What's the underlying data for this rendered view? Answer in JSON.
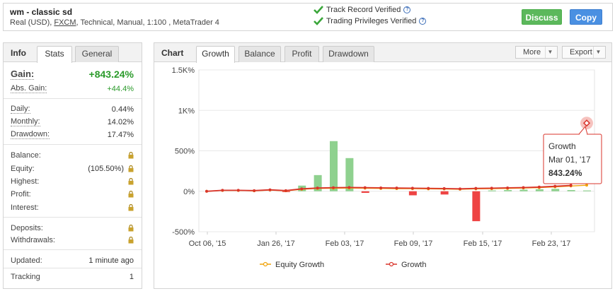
{
  "system": {
    "name": "wm - classic sd",
    "account_type": "Real (USD),",
    "broker": "FXCM",
    "details": ", Technical, Manual, 1:100 , MetaTrader 4"
  },
  "verification": {
    "track_record": "Track Record Verified",
    "trading_privileges": "Trading Privileges Verified",
    "help": "?"
  },
  "actions": {
    "discuss": "Discuss",
    "copy": "Copy"
  },
  "info_panel": {
    "label": "Info",
    "tabs": [
      "Stats",
      "General"
    ],
    "gain": {
      "label": "Gain:",
      "value": "+843.24%"
    },
    "abs_gain": {
      "label": "Abs. Gain:",
      "value": "+44.4%"
    },
    "daily": {
      "label": "Daily:",
      "value": "0.44%"
    },
    "monthly": {
      "label": "Monthly:",
      "value": "14.02%"
    },
    "drawdown": {
      "label": "Drawdown:",
      "value": "17.47%"
    },
    "balance": {
      "label": "Balance:"
    },
    "equity": {
      "label": "Equity:",
      "value": "(105.50%)"
    },
    "highest": {
      "label": "Highest:"
    },
    "profit": {
      "label": "Profit:"
    },
    "interest": {
      "label": "Interest:"
    },
    "deposits": {
      "label": "Deposits:"
    },
    "withdrawals": {
      "label": "Withdrawals:"
    },
    "updated": {
      "label": "Updated:",
      "value": "1 minute ago"
    },
    "tracking": {
      "label": "Tracking",
      "value": "1"
    }
  },
  "chart_panel": {
    "label": "Chart",
    "tabs": [
      "Growth",
      "Balance",
      "Profit",
      "Drawdown"
    ],
    "more": "More",
    "export": "Export",
    "caret": "▼"
  },
  "colors": {
    "growth_line": "#d9342b",
    "equity_line": "#f0a30a",
    "bar_positive": "#8fd18f",
    "bar_negative": "#ee4444"
  },
  "chart_data": {
    "type": "line",
    "y_ticks": [
      "1.5K%",
      "1K%",
      "500%",
      "0%",
      "-500%"
    ],
    "y_tick_values": [
      1500,
      1000,
      500,
      0,
      -500
    ],
    "ylim": [
      -500,
      1500
    ],
    "x_ticks": [
      "Oct 06, '15",
      "Jan 26, '17",
      "Feb 03, '17",
      "Feb 09, '17",
      "Feb 15, '17",
      "Feb 23, '17"
    ],
    "series": [
      {
        "name": "Equity Growth",
        "values": [
          0,
          10,
          10,
          5,
          15,
          5,
          25,
          35,
          38,
          40,
          38,
          35,
          33,
          32,
          30,
          28,
          25,
          30,
          32,
          35,
          40,
          45,
          55,
          65,
          75
        ]
      },
      {
        "name": "Growth",
        "values": [
          0,
          12,
          12,
          8,
          18,
          8,
          30,
          40,
          45,
          47,
          45,
          42,
          40,
          38,
          36,
          34,
          30,
          36,
          38,
          42,
          46,
          52,
          62,
          72,
          843.24
        ]
      }
    ],
    "bars": [
      0,
      0,
      0,
      0,
      0,
      -10,
      70,
      200,
      620,
      410,
      -20,
      0,
      0,
      -50,
      0,
      -40,
      0,
      -370,
      10,
      15,
      20,
      25,
      30,
      15,
      10
    ],
    "tooltip": {
      "title": "Growth",
      "date": "Mar 01, '17",
      "value": "843.24%"
    },
    "grid": true,
    "legend_placement": "bottom"
  }
}
